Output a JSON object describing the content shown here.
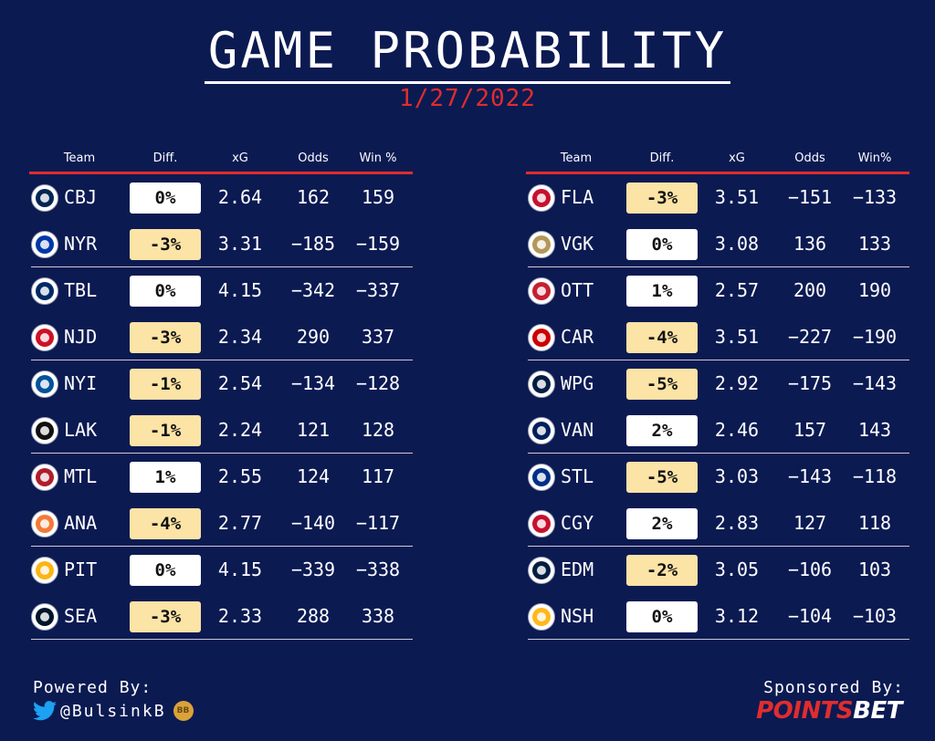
{
  "title": "GAME PROBABILITY",
  "date": "1/27/2022",
  "left_panel": {
    "headers": {
      "team": "Team",
      "diff": "Diff.",
      "xg": "xG",
      "odds": "Odds",
      "win": "Win %"
    },
    "rows": [
      {
        "team": "CBJ",
        "diff": "0%",
        "xg": "2.64",
        "odds": "162",
        "win": "159",
        "color": "#002654"
      },
      {
        "team": "NYR",
        "diff": "-3%",
        "xg": "3.31",
        "odds": "−185",
        "win": "−159",
        "color": "#0038a8"
      },
      {
        "team": "TBL",
        "diff": "0%",
        "xg": "4.15",
        "odds": "−342",
        "win": "−337",
        "color": "#002868"
      },
      {
        "team": "NJD",
        "diff": "-3%",
        "xg": "2.34",
        "odds": "290",
        "win": "337",
        "color": "#ce1126"
      },
      {
        "team": "NYI",
        "diff": "-1%",
        "xg": "2.54",
        "odds": "−134",
        "win": "−128",
        "color": "#00539b"
      },
      {
        "team": "LAK",
        "diff": "-1%",
        "xg": "2.24",
        "odds": "121",
        "win": "128",
        "color": "#111111"
      },
      {
        "team": "MTL",
        "diff": "1%",
        "xg": "2.55",
        "odds": "124",
        "win": "117",
        "color": "#af1e2d"
      },
      {
        "team": "ANA",
        "diff": "-4%",
        "xg": "2.77",
        "odds": "−140",
        "win": "−117",
        "color": "#f47a38"
      },
      {
        "team": "PIT",
        "diff": "0%",
        "xg": "4.15",
        "odds": "−339",
        "win": "−338",
        "color": "#fcb514"
      },
      {
        "team": "SEA",
        "diff": "-3%",
        "xg": "2.33",
        "odds": "288",
        "win": "338",
        "color": "#001628"
      }
    ]
  },
  "right_panel": {
    "headers": {
      "team": "Team",
      "diff": "Diff.",
      "xg": "xG",
      "odds": "Odds",
      "win": "Win%"
    },
    "rows": [
      {
        "team": "FLA",
        "diff": "-3%",
        "xg": "3.51",
        "odds": "−151",
        "win": "−133",
        "color": "#c8102e"
      },
      {
        "team": "VGK",
        "diff": "0%",
        "xg": "3.08",
        "odds": "136",
        "win": "133",
        "color": "#b4975a"
      },
      {
        "team": "OTT",
        "diff": "1%",
        "xg": "2.57",
        "odds": "200",
        "win": "190",
        "color": "#c52032"
      },
      {
        "team": "CAR",
        "diff": "-4%",
        "xg": "3.51",
        "odds": "−227",
        "win": "−190",
        "color": "#cc0000"
      },
      {
        "team": "WPG",
        "diff": "-5%",
        "xg": "2.92",
        "odds": "−175",
        "win": "−143",
        "color": "#041e42"
      },
      {
        "team": "VAN",
        "diff": "2%",
        "xg": "2.46",
        "odds": "157",
        "win": "143",
        "color": "#00205b"
      },
      {
        "team": "STL",
        "diff": "-5%",
        "xg": "3.03",
        "odds": "−143",
        "win": "−118",
        "color": "#002f87"
      },
      {
        "team": "CGY",
        "diff": "2%",
        "xg": "2.83",
        "odds": "127",
        "win": "118",
        "color": "#c8102e"
      },
      {
        "team": "EDM",
        "diff": "-2%",
        "xg": "3.05",
        "odds": "−106",
        "win": "103",
        "color": "#041e42"
      },
      {
        "team": "NSH",
        "diff": "0%",
        "xg": "3.12",
        "odds": "−104",
        "win": "−103",
        "color": "#ffb81c"
      }
    ]
  },
  "diff_colors": {
    "neutral": "#ffffff",
    "negative": "#fce3a6"
  },
  "accent": "#e02d2d",
  "background": "#0c1a52",
  "footer": {
    "powered_label": "Powered By:",
    "handle": "@BulsinkB",
    "badge": "BB",
    "sponsored_label": "Sponsored By:",
    "sponsor_part1": "POINTS",
    "sponsor_part2": "BET",
    "icons": [
      "twitter-icon",
      "bb-badge-icon"
    ]
  }
}
